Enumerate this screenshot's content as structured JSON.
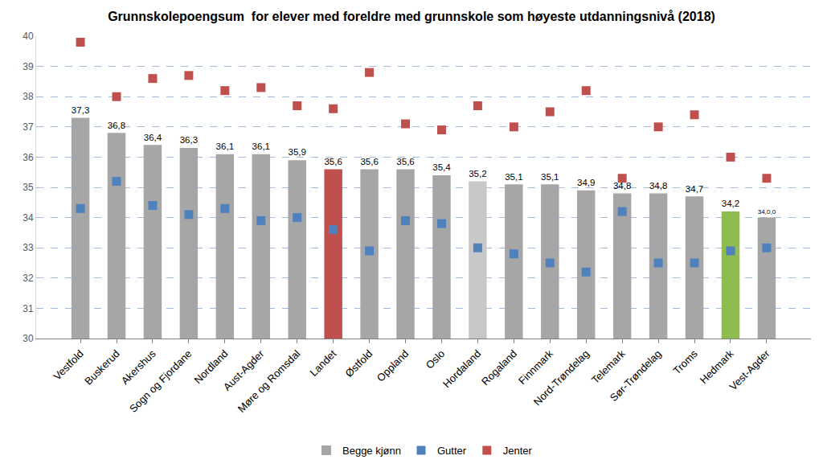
{
  "chart_data": {
    "type": "bar",
    "title": "Grunnskolepoengsum  for elever med foreldre med grunnskole som høyeste utdanningsnivå (2018)",
    "categories": [
      "Vestfold",
      "Buskerud",
      "Akershus",
      "Sogn og Fjordane",
      "Nordland",
      "Aust-Agder",
      "Møre og Romsdal",
      "Landet",
      "Østfold",
      "Oppland",
      "Oslo",
      "Hordaland",
      "Rogaland",
      "Finnmark",
      "Nord-Trøndelag",
      "Telemark",
      "Sør-Trøndelag",
      "Troms",
      "Hedmark",
      "Vest-Agder"
    ],
    "series": [
      {
        "name": "Begge kjønn",
        "type": "bar",
        "color": "#a6a6a6",
        "colors": [
          "#a6a6a6",
          "#a6a6a6",
          "#a6a6a6",
          "#a6a6a6",
          "#a6a6a6",
          "#a6a6a6",
          "#a6a6a6",
          "#c0504d",
          "#a6a6a6",
          "#a6a6a6",
          "#a6a6a6",
          "#c8c8c8",
          "#a6a6a6",
          "#a6a6a6",
          "#a6a6a6",
          "#a6a6a6",
          "#a6a6a6",
          "#a6a6a6",
          "#8fbc4f",
          "#a6a6a6"
        ],
        "values": [
          37.3,
          36.8,
          36.4,
          36.3,
          36.1,
          36.1,
          35.9,
          35.6,
          35.6,
          35.6,
          35.4,
          35.2,
          35.1,
          35.1,
          34.9,
          34.8,
          34.8,
          34.7,
          34.2,
          34.0
        ],
        "value_labels": [
          "37,3",
          "36,8",
          "36,4",
          "36,3",
          "36,1",
          "36,1",
          "35,9",
          "35,6",
          "35,6",
          "35,6",
          "35,4",
          "35,2",
          "35,1",
          "35,1",
          "34,9",
          "34,8",
          "34,8",
          "34,7",
          "34,2",
          "34,0,0"
        ]
      },
      {
        "name": "Gutter",
        "type": "scatter",
        "marker": "square",
        "color": "#4f81bd",
        "values": [
          34.3,
          35.2,
          34.4,
          34.1,
          34.3,
          33.9,
          34.0,
          33.6,
          32.9,
          33.9,
          33.8,
          33.0,
          32.8,
          32.5,
          32.2,
          34.2,
          32.5,
          32.5,
          32.9,
          33.0
        ]
      },
      {
        "name": "Jenter",
        "type": "scatter",
        "marker": "square",
        "color": "#c0504d",
        "values": [
          39.8,
          38.0,
          38.6,
          38.7,
          38.2,
          38.3,
          37.7,
          37.6,
          38.8,
          37.1,
          36.9,
          37.7,
          37.0,
          37.5,
          38.2,
          35.3,
          37.0,
          37.4,
          36.0,
          35.3
        ]
      }
    ],
    "ylim": [
      30,
      40
    ],
    "yticks": [
      30,
      31,
      32,
      33,
      34,
      35,
      36,
      37,
      38,
      39,
      40
    ],
    "grid": true,
    "legend": "bottom",
    "data_labels": true
  }
}
